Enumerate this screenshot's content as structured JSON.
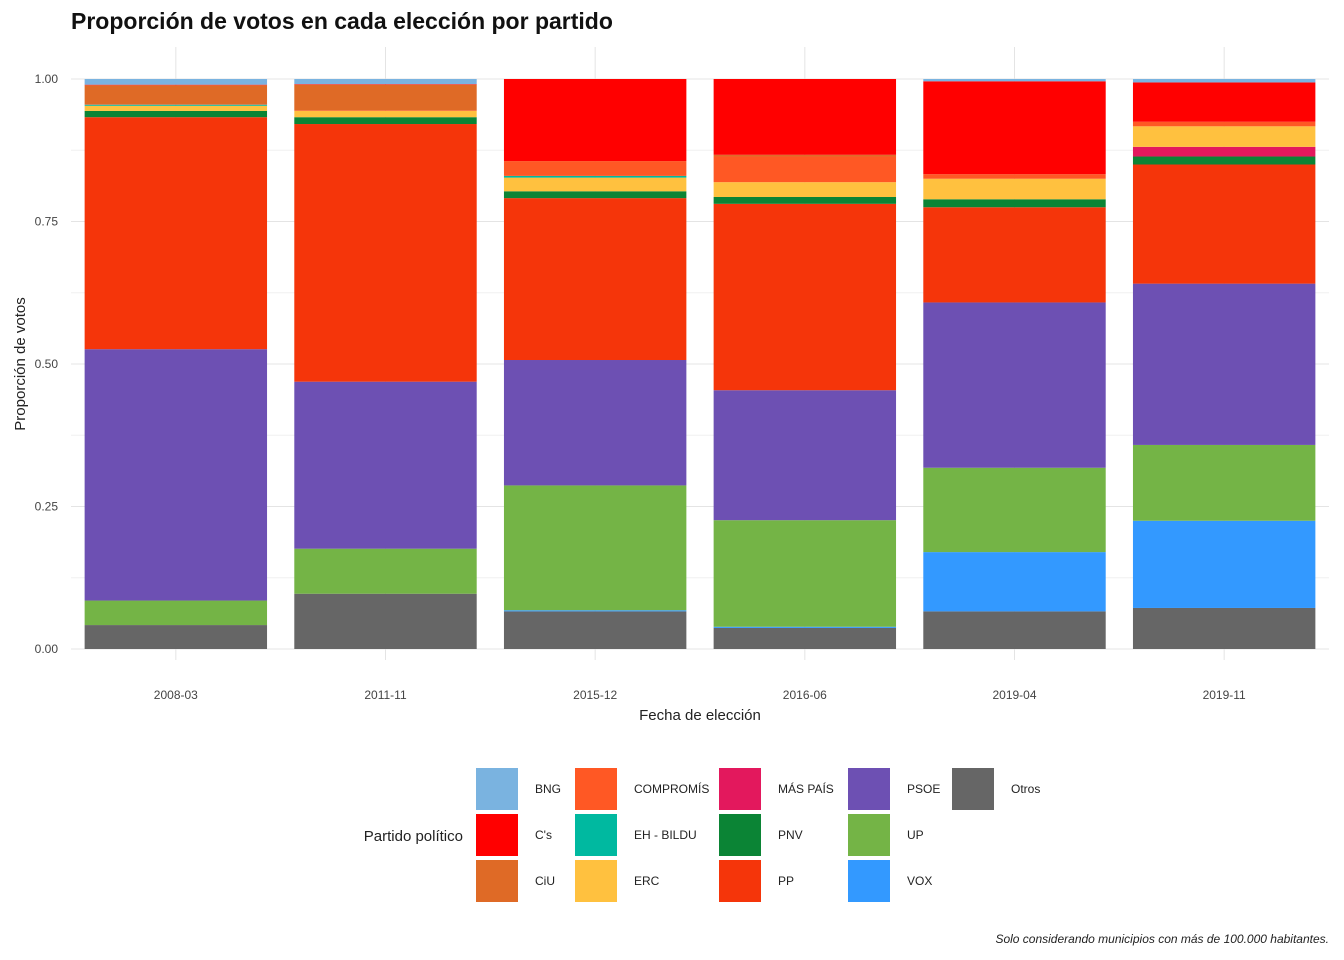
{
  "chart_data": {
    "type": "bar",
    "stacked": true,
    "title": "Proporción de votos en cada elección por partido",
    "xlabel": "Fecha de elección",
    "ylabel": "Proporción de votos",
    "ylim": [
      0,
      1
    ],
    "y_ticks": [
      "0.00",
      "0.25",
      "0.50",
      "0.75",
      "1.00"
    ],
    "categories": [
      "2008-03",
      "2011-11",
      "2015-12",
      "2016-06",
      "2019-04",
      "2019-11"
    ],
    "legend_title": "Partido político",
    "legend_position": "bottom",
    "caption": "Solo considerando municipios con más de 100.000 habitantes.",
    "series": [
      {
        "name": "Otros",
        "color": "#666666",
        "values": [
          0.042,
          0.097,
          0.066,
          0.037,
          0.066,
          0.072
        ]
      },
      {
        "name": "VOX",
        "color": "#3399FF",
        "values": [
          0.0,
          0.0,
          0.002,
          0.002,
          0.104,
          0.153
        ]
      },
      {
        "name": "UP",
        "color": "#74B446",
        "values": [
          0.043,
          0.079,
          0.219,
          0.187,
          0.148,
          0.133
        ]
      },
      {
        "name": "PSOE",
        "color": "#6D50B3",
        "values": [
          0.441,
          0.293,
          0.22,
          0.228,
          0.29,
          0.283
        ]
      },
      {
        "name": "PP",
        "color": "#F5350A",
        "values": [
          0.407,
          0.452,
          0.284,
          0.327,
          0.167,
          0.209
        ]
      },
      {
        "name": "PNV",
        "color": "#0B8435",
        "values": [
          0.011,
          0.012,
          0.012,
          0.012,
          0.014,
          0.014
        ]
      },
      {
        "name": "MÁS PAÍS",
        "color": "#E3185D",
        "values": [
          0.0,
          0.0,
          0.0,
          0.0,
          0.0,
          0.017
        ]
      },
      {
        "name": "ERC",
        "color": "#FFC13F",
        "values": [
          0.009,
          0.011,
          0.024,
          0.026,
          0.036,
          0.036
        ]
      },
      {
        "name": "EH - BILDU",
        "color": "#00B9A0",
        "values": [
          0.002,
          0.0,
          0.003,
          0.0,
          0.0,
          0.0
        ]
      },
      {
        "name": "COMPROMÍS",
        "color": "#FF5824",
        "values": [
          0.001,
          0.001,
          0.026,
          0.045,
          0.008,
          0.008
        ]
      },
      {
        "name": "CiU",
        "color": "#DF6A26",
        "values": [
          0.033,
          0.045,
          0.0,
          0.003,
          0.0,
          0.0
        ]
      },
      {
        "name": "C's",
        "color": "#FF0000",
        "values": [
          0.001,
          0.001,
          0.144,
          0.133,
          0.163,
          0.069
        ]
      },
      {
        "name": "BNG",
        "color": "#7AB3E0",
        "values": [
          0.01,
          0.009,
          0.0,
          0.0,
          0.004,
          0.006
        ]
      }
    ],
    "legend_order": [
      "BNG",
      "C's",
      "CiU",
      "COMPROMÍS",
      "EH - BILDU",
      "ERC",
      "MÁS PAÍS",
      "PNV",
      "PP",
      "PSOE",
      "UP",
      "VOX",
      "Otros"
    ]
  }
}
